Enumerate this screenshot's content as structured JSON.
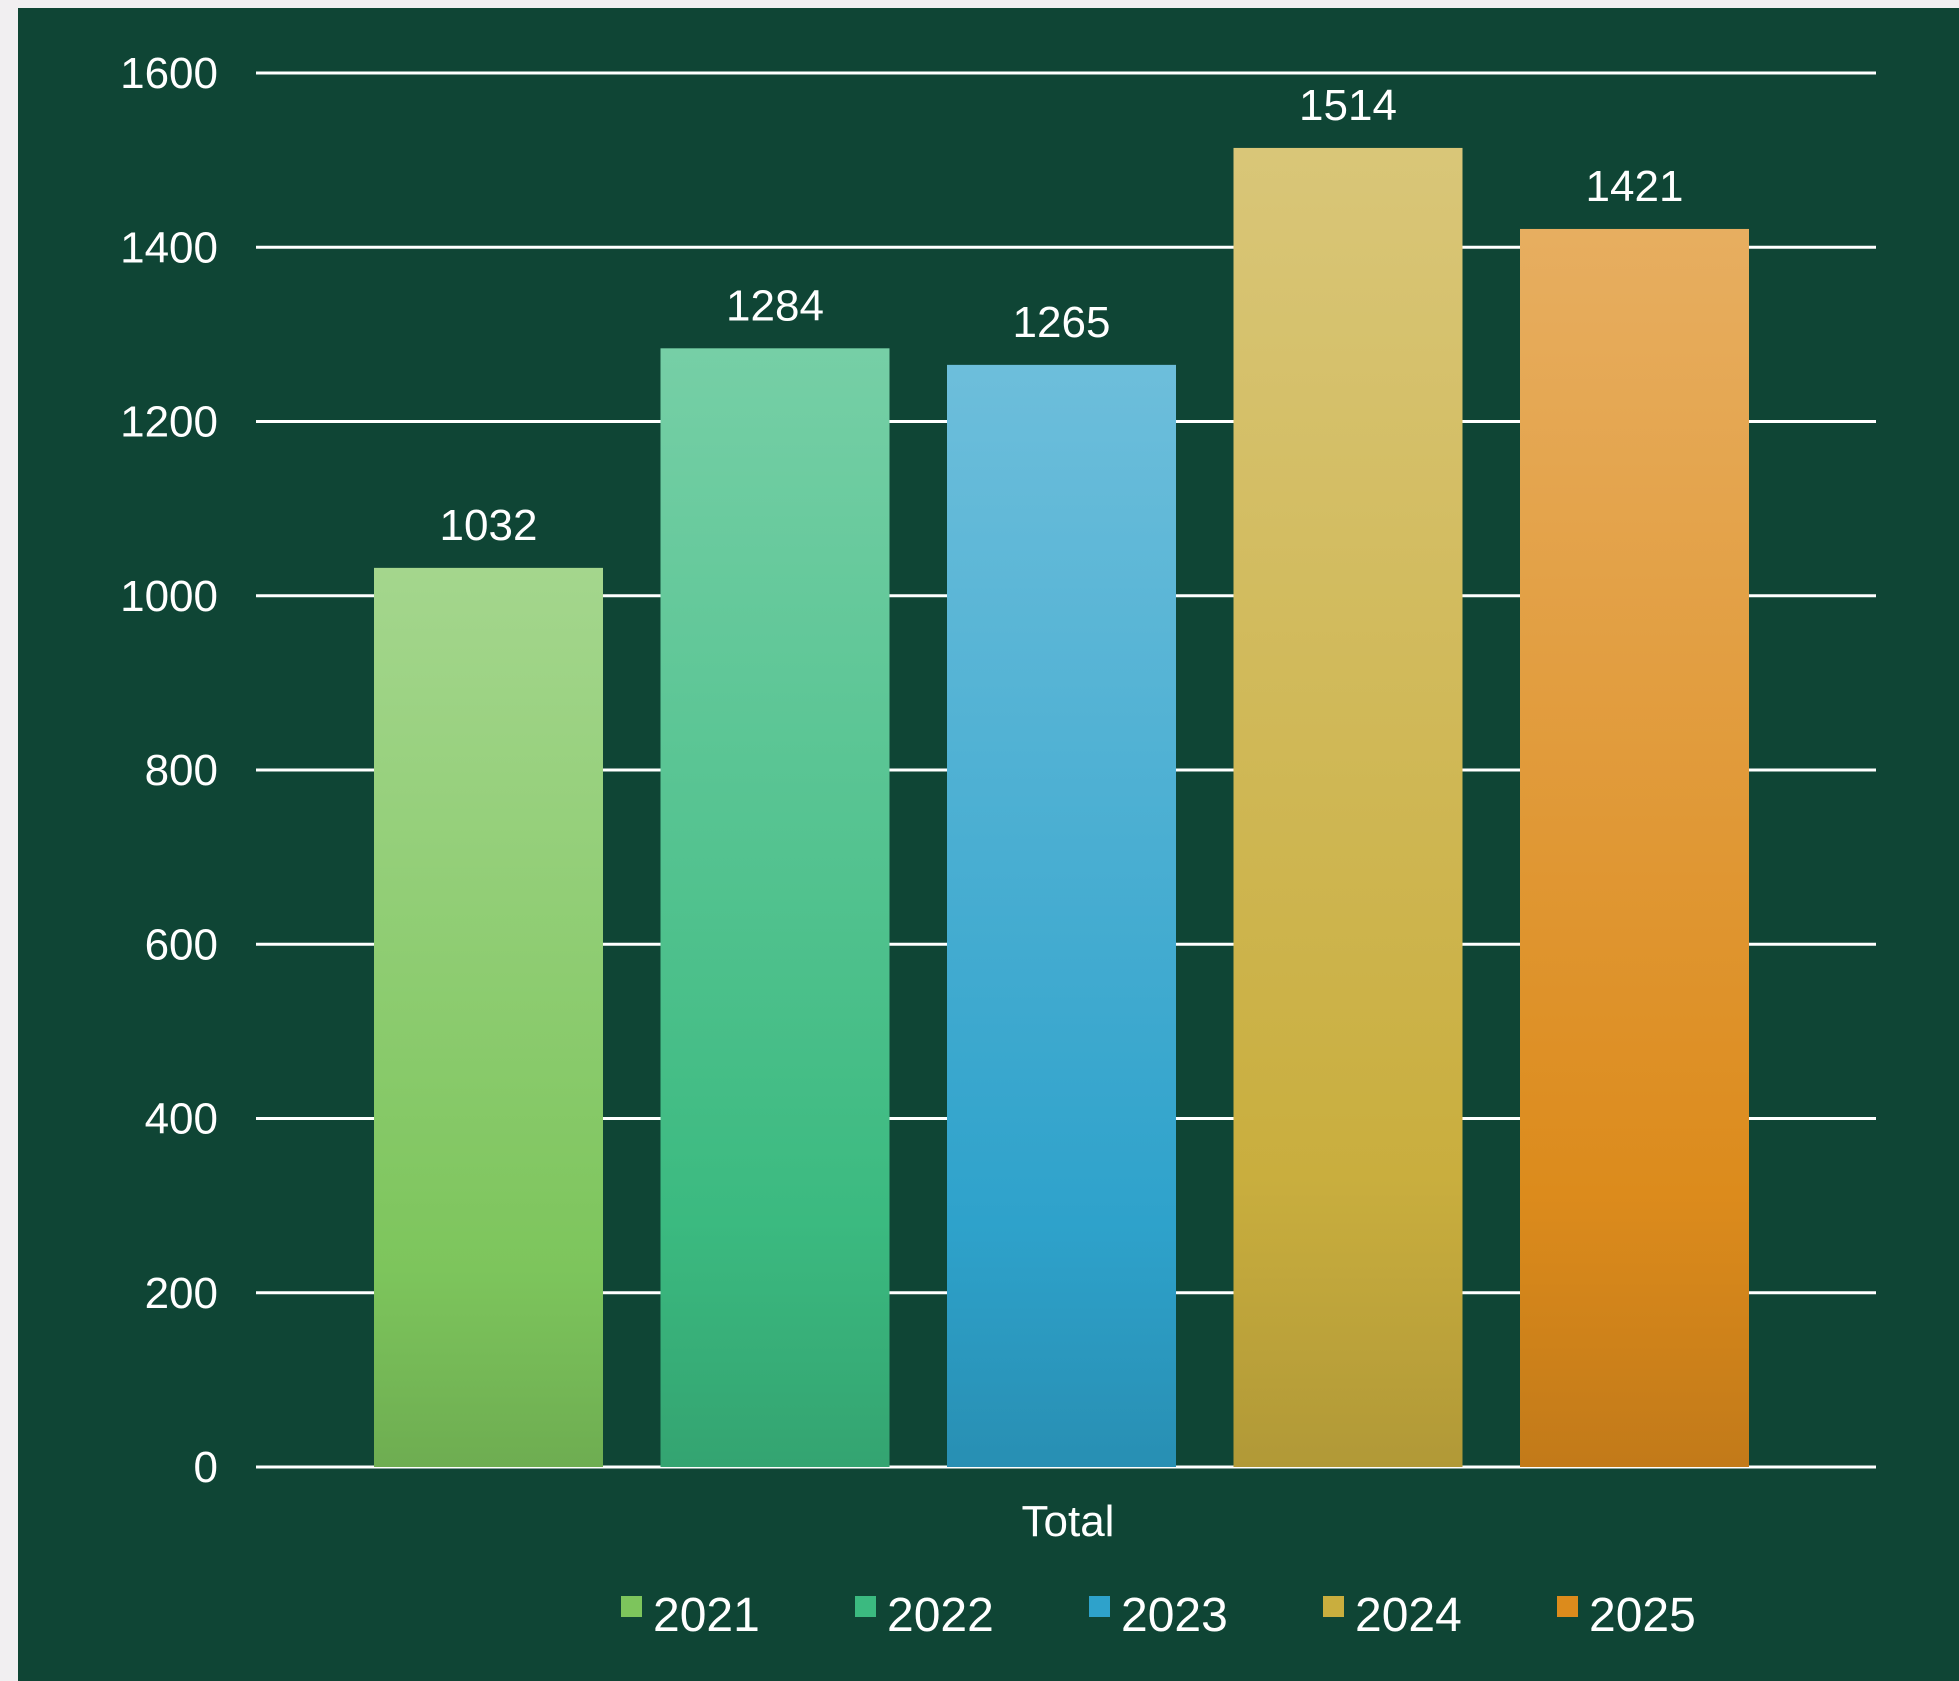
{
  "chart_data": {
    "type": "bar",
    "categories": [
      "Total"
    ],
    "series": [
      {
        "name": "2021",
        "values": [
          1032
        ],
        "color": "#7dc55c"
      },
      {
        "name": "2022",
        "values": [
          1284
        ],
        "color": "#3bba80"
      },
      {
        "name": "2023",
        "values": [
          1265
        ],
        "color": "#2ea2cb"
      },
      {
        "name": "2024",
        "values": [
          1514
        ],
        "color": "#c9ae3e"
      },
      {
        "name": "2025",
        "values": [
          1421
        ],
        "color": "#dc8b1c"
      }
    ],
    "yticks": [
      "0",
      "200",
      "400",
      "600",
      "800",
      "1000",
      "1200",
      "1400",
      "1600"
    ],
    "ylim": [
      0,
      1600
    ],
    "grid": true,
    "legend": "bottom",
    "data_labels": true,
    "background_color": "#0f4535"
  }
}
